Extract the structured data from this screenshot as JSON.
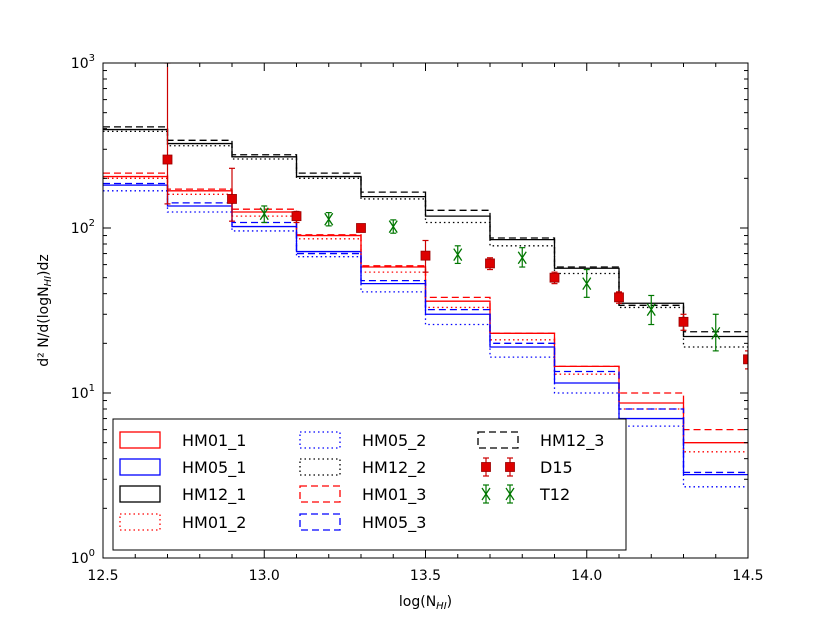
{
  "chart_data": {
    "type": "step",
    "title": "",
    "xlabel": "log(N",
    "xlabel_sub": "HI",
    "xlabel_close": ")",
    "ylabel": "d² N/d(logN",
    "ylabel_sub": "HI",
    "ylabel_close": ")dz",
    "xlim": [
      12.5,
      14.5
    ],
    "ylim_log10": [
      0,
      3
    ],
    "yscale": "log",
    "x_ticks": [
      "12.5",
      "13.0",
      "13.5",
      "14.0",
      "14.5"
    ],
    "x_tick_values": [
      12.5,
      13.0,
      13.5,
      14.0,
      14.5
    ],
    "y_ticks": [
      {
        "base": "10",
        "exp": "0"
      },
      {
        "base": "10",
        "exp": "1"
      },
      {
        "base": "10",
        "exp": "2"
      },
      {
        "base": "10",
        "exp": "3"
      }
    ],
    "bin_edges": [
      12.5,
      12.7,
      12.9,
      13.1,
      13.3,
      13.5,
      13.7,
      13.9,
      14.1,
      14.3,
      14.5
    ],
    "series": [
      {
        "name": "HM01_1",
        "color": "#ff0000",
        "dash": "solid",
        "values": [
          205,
          168,
          125,
          90,
          58,
          36,
          23,
          14.5,
          8.7,
          5.0
        ]
      },
      {
        "name": "HM05_1",
        "color": "#0000ff",
        "dash": "solid",
        "values": [
          182,
          136,
          102,
          72,
          46,
          30,
          19,
          11.5,
          7.0,
          3.2
        ]
      },
      {
        "name": "HM12_1",
        "color": "#000000",
        "dash": "solid",
        "values": [
          395,
          325,
          270,
          205,
          155,
          118,
          85,
          57,
          35,
          22
        ]
      },
      {
        "name": "HM01_2",
        "color": "#ff0000",
        "dash": "dotted",
        "values": [
          200,
          160,
          118,
          86,
          54,
          33,
          21,
          13,
          8.0,
          4.4
        ]
      },
      {
        "name": "HM05_2",
        "color": "#0000ff",
        "dash": "dotted",
        "values": [
          168,
          125,
          96,
          67,
          41,
          26,
          16.5,
          10,
          6.3,
          2.7
        ]
      },
      {
        "name": "HM12_2",
        "color": "#000000",
        "dash": "dotted",
        "values": [
          385,
          315,
          262,
          200,
          150,
          108,
          78,
          53,
          33,
          19
        ]
      },
      {
        "name": "HM01_3",
        "color": "#ff0000",
        "dash": "dashed",
        "values": [
          215,
          172,
          130,
          91,
          59,
          38,
          23,
          14.5,
          10,
          6.0
        ]
      },
      {
        "name": "HM05_3",
        "color": "#0000ff",
        "dash": "dashed",
        "values": [
          186,
          142,
          108,
          70,
          48,
          32,
          20,
          13.5,
          8.0,
          3.3
        ]
      },
      {
        "name": "HM12_3",
        "color": "#000000",
        "dash": "dashed",
        "values": [
          410,
          340,
          278,
          215,
          165,
          128,
          87,
          58,
          34,
          23.5
        ]
      }
    ],
    "points": [
      {
        "name": "D15",
        "color": "#cc0000",
        "marker": "square",
        "data": [
          {
            "x": 12.7,
            "y": 260,
            "lo": 140,
            "hi": 1000
          },
          {
            "x": 12.9,
            "y": 150,
            "lo": 110,
            "hi": 230
          },
          {
            "x": 13.1,
            "y": 118,
            "lo": 108,
            "hi": 126
          },
          {
            "x": 13.3,
            "y": 100,
            "lo": 96,
            "hi": 104
          },
          {
            "x": 13.5,
            "y": 68,
            "lo": 54,
            "hi": 84
          },
          {
            "x": 13.7,
            "y": 61,
            "lo": 56,
            "hi": 66
          },
          {
            "x": 13.9,
            "y": 50,
            "lo": 46,
            "hi": 54
          },
          {
            "x": 14.1,
            "y": 38,
            "lo": 35,
            "hi": 41
          },
          {
            "x": 14.3,
            "y": 27,
            "lo": 24,
            "hi": 30
          },
          {
            "x": 14.5,
            "y": 16,
            "lo": 14,
            "hi": 18
          }
        ]
      },
      {
        "name": "T12",
        "color": "#007700",
        "marker": "x",
        "data": [
          {
            "x": 13.0,
            "y": 122,
            "lo": 108,
            "hi": 136
          },
          {
            "x": 13.2,
            "y": 113,
            "lo": 103,
            "hi": 124
          },
          {
            "x": 13.4,
            "y": 102,
            "lo": 93,
            "hi": 112
          },
          {
            "x": 13.6,
            "y": 69,
            "lo": 61,
            "hi": 78
          },
          {
            "x": 13.8,
            "y": 66,
            "lo": 58,
            "hi": 76
          },
          {
            "x": 14.0,
            "y": 46,
            "lo": 38,
            "hi": 56
          },
          {
            "x": 14.2,
            "y": 32,
            "lo": 26,
            "hi": 39
          },
          {
            "x": 14.4,
            "y": 23,
            "lo": 18,
            "hi": 30
          }
        ]
      }
    ],
    "legend": {
      "placement": "lower-left",
      "columns": [
        [
          "HM01_1",
          "HM05_1",
          "HM12_1",
          "HM01_2"
        ],
        [
          "HM05_2",
          "HM12_2",
          "HM01_3",
          "HM05_3"
        ],
        [
          "HM12_3",
          "D15",
          "T12"
        ]
      ]
    }
  }
}
